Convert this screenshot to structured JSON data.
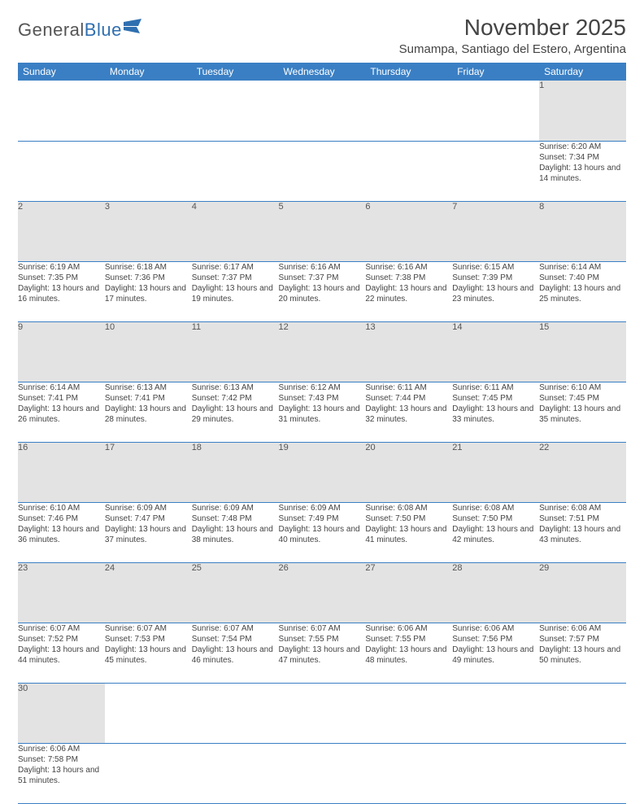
{
  "logo": {
    "text_a": "General",
    "text_b": "Blue"
  },
  "title": "November 2025",
  "location": "Sumampa, Santiago del Estero, Argentina",
  "day_headers": [
    "Sunday",
    "Monday",
    "Tuesday",
    "Wednesday",
    "Thursday",
    "Friday",
    "Saturday"
  ],
  "weeks": [
    [
      null,
      null,
      null,
      null,
      null,
      null,
      {
        "n": "1",
        "sr": "6:20 AM",
        "ss": "7:34 PM",
        "dl": "13 hours and 14 minutes."
      }
    ],
    [
      {
        "n": "2",
        "sr": "6:19 AM",
        "ss": "7:35 PM",
        "dl": "13 hours and 16 minutes."
      },
      {
        "n": "3",
        "sr": "6:18 AM",
        "ss": "7:36 PM",
        "dl": "13 hours and 17 minutes."
      },
      {
        "n": "4",
        "sr": "6:17 AM",
        "ss": "7:37 PM",
        "dl": "13 hours and 19 minutes."
      },
      {
        "n": "5",
        "sr": "6:16 AM",
        "ss": "7:37 PM",
        "dl": "13 hours and 20 minutes."
      },
      {
        "n": "6",
        "sr": "6:16 AM",
        "ss": "7:38 PM",
        "dl": "13 hours and 22 minutes."
      },
      {
        "n": "7",
        "sr": "6:15 AM",
        "ss": "7:39 PM",
        "dl": "13 hours and 23 minutes."
      },
      {
        "n": "8",
        "sr": "6:14 AM",
        "ss": "7:40 PM",
        "dl": "13 hours and 25 minutes."
      }
    ],
    [
      {
        "n": "9",
        "sr": "6:14 AM",
        "ss": "7:41 PM",
        "dl": "13 hours and 26 minutes."
      },
      {
        "n": "10",
        "sr": "6:13 AM",
        "ss": "7:41 PM",
        "dl": "13 hours and 28 minutes."
      },
      {
        "n": "11",
        "sr": "6:13 AM",
        "ss": "7:42 PM",
        "dl": "13 hours and 29 minutes."
      },
      {
        "n": "12",
        "sr": "6:12 AM",
        "ss": "7:43 PM",
        "dl": "13 hours and 31 minutes."
      },
      {
        "n": "13",
        "sr": "6:11 AM",
        "ss": "7:44 PM",
        "dl": "13 hours and 32 minutes."
      },
      {
        "n": "14",
        "sr": "6:11 AM",
        "ss": "7:45 PM",
        "dl": "13 hours and 33 minutes."
      },
      {
        "n": "15",
        "sr": "6:10 AM",
        "ss": "7:45 PM",
        "dl": "13 hours and 35 minutes."
      }
    ],
    [
      {
        "n": "16",
        "sr": "6:10 AM",
        "ss": "7:46 PM",
        "dl": "13 hours and 36 minutes."
      },
      {
        "n": "17",
        "sr": "6:09 AM",
        "ss": "7:47 PM",
        "dl": "13 hours and 37 minutes."
      },
      {
        "n": "18",
        "sr": "6:09 AM",
        "ss": "7:48 PM",
        "dl": "13 hours and 38 minutes."
      },
      {
        "n": "19",
        "sr": "6:09 AM",
        "ss": "7:49 PM",
        "dl": "13 hours and 40 minutes."
      },
      {
        "n": "20",
        "sr": "6:08 AM",
        "ss": "7:50 PM",
        "dl": "13 hours and 41 minutes."
      },
      {
        "n": "21",
        "sr": "6:08 AM",
        "ss": "7:50 PM",
        "dl": "13 hours and 42 minutes."
      },
      {
        "n": "22",
        "sr": "6:08 AM",
        "ss": "7:51 PM",
        "dl": "13 hours and 43 minutes."
      }
    ],
    [
      {
        "n": "23",
        "sr": "6:07 AM",
        "ss": "7:52 PM",
        "dl": "13 hours and 44 minutes."
      },
      {
        "n": "24",
        "sr": "6:07 AM",
        "ss": "7:53 PM",
        "dl": "13 hours and 45 minutes."
      },
      {
        "n": "25",
        "sr": "6:07 AM",
        "ss": "7:54 PM",
        "dl": "13 hours and 46 minutes."
      },
      {
        "n": "26",
        "sr": "6:07 AM",
        "ss": "7:55 PM",
        "dl": "13 hours and 47 minutes."
      },
      {
        "n": "27",
        "sr": "6:06 AM",
        "ss": "7:55 PM",
        "dl": "13 hours and 48 minutes."
      },
      {
        "n": "28",
        "sr": "6:06 AM",
        "ss": "7:56 PM",
        "dl": "13 hours and 49 minutes."
      },
      {
        "n": "29",
        "sr": "6:06 AM",
        "ss": "7:57 PM",
        "dl": "13 hours and 50 minutes."
      }
    ],
    [
      {
        "n": "30",
        "sr": "6:06 AM",
        "ss": "7:58 PM",
        "dl": "13 hours and 51 minutes."
      },
      null,
      null,
      null,
      null,
      null,
      null
    ]
  ],
  "labels": {
    "sunrise": "Sunrise: ",
    "sunset": "Sunset: ",
    "daylight": "Daylight: "
  },
  "colors": {
    "header_bg": "#3a7fc4",
    "header_fg": "#ffffff",
    "daynum_bg": "#e3e3e3",
    "rule": "#3a7fc4",
    "text": "#444444",
    "logo_blue": "#2f6fb0"
  }
}
